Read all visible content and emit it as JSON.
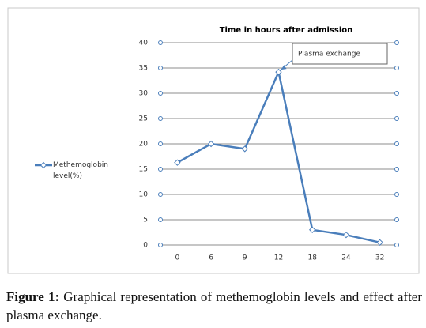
{
  "chart_data": {
    "type": "line",
    "title": "Time in hours after admission",
    "categories": [
      "0",
      "6",
      "9",
      "12",
      "18",
      "24",
      "32"
    ],
    "series": [
      {
        "name": "Methemoglobin level(%)",
        "color": "#4a7ebb",
        "values": [
          16.3,
          20,
          19,
          34.2,
          3,
          2,
          0.5
        ]
      }
    ],
    "ylim": [
      0,
      40
    ],
    "yticks": [
      0,
      5,
      10,
      15,
      20,
      25,
      30,
      35,
      40
    ],
    "grid": true,
    "legend": "left",
    "annotations": [
      {
        "text": "Plasma exchange",
        "category": 3
      }
    ]
  },
  "caption": {
    "label": "Figure 1:",
    "text": "Graphical representation of methemoglobin levels and effect after plasma exchange."
  }
}
